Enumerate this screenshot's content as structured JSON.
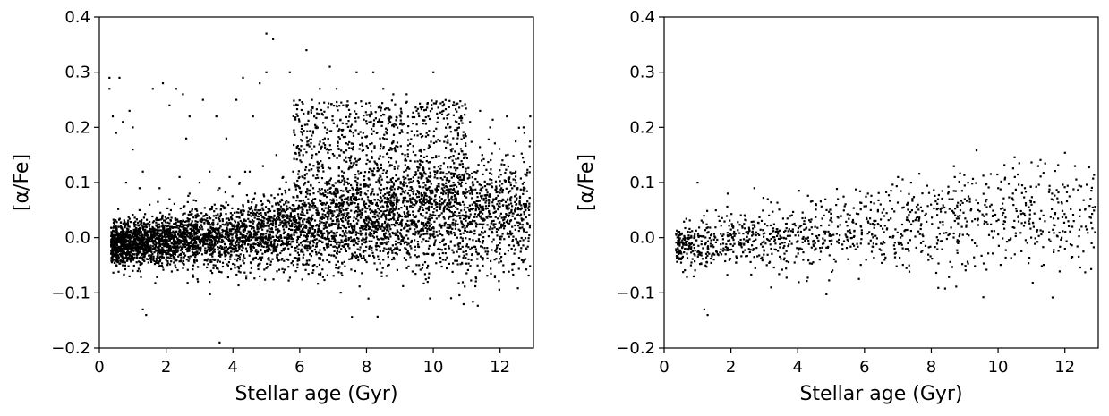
{
  "chart_data": [
    {
      "type": "scatter",
      "xlabel": "Stellar age (Gyr)",
      "ylabel": "[α/Fe]",
      "xlim": [
        0,
        13
      ],
      "ylim": [
        -0.2,
        0.4
      ],
      "xticks": [
        "0",
        "2",
        "4",
        "6",
        "8",
        "10",
        "12"
      ],
      "yticks": [
        "−0.2",
        "−0.1",
        "0.0",
        "0.1",
        "0.2",
        "0.3",
        "0.4"
      ],
      "marker_color": "#000000",
      "grid": false,
      "points": [
        [
          0.3,
          0.27
        ],
        [
          0.3,
          0.29
        ],
        [
          0.6,
          0.29
        ],
        [
          0.4,
          0.22
        ],
        [
          0.7,
          0.21
        ],
        [
          0.9,
          0.23
        ],
        [
          0.5,
          0.19
        ],
        [
          1.0,
          0.2
        ],
        [
          1.0,
          0.16
        ],
        [
          1.3,
          0.12
        ],
        [
          1.2,
          0.09
        ],
        [
          0.8,
          0.1
        ],
        [
          1.6,
          0.27
        ],
        [
          1.9,
          0.28
        ],
        [
          2.1,
          0.24
        ],
        [
          2.3,
          0.27
        ],
        [
          2.5,
          0.26
        ],
        [
          2.7,
          0.22
        ],
        [
          2.6,
          0.18
        ],
        [
          3.1,
          0.25
        ],
        [
          3.5,
          0.22
        ],
        [
          3.8,
          0.18
        ],
        [
          4.1,
          0.25
        ],
        [
          4.3,
          0.29
        ],
        [
          4.6,
          0.22
        ],
        [
          4.8,
          0.28
        ],
        [
          5.0,
          0.3
        ],
        [
          5.0,
          0.37
        ],
        [
          5.2,
          0.36
        ],
        [
          5.7,
          0.3
        ],
        [
          6.2,
          0.34
        ],
        [
          6.6,
          0.27
        ],
        [
          6.9,
          0.31
        ],
        [
          7.1,
          0.27
        ],
        [
          7.3,
          0.24
        ],
        [
          7.7,
          0.3
        ],
        [
          8.2,
          0.3
        ],
        [
          8.5,
          0.27
        ],
        [
          8.8,
          0.26
        ],
        [
          9.2,
          0.26
        ],
        [
          9.5,
          0.23
        ],
        [
          10.0,
          0.3
        ],
        [
          10.3,
          0.23
        ],
        [
          10.7,
          0.21
        ],
        [
          11.1,
          0.21
        ],
        [
          11.4,
          0.23
        ],
        [
          11.7,
          0.2
        ],
        [
          12.2,
          0.22
        ],
        [
          12.7,
          0.2
        ],
        [
          12.9,
          0.22
        ],
        [
          12.6,
          0.04
        ],
        [
          12.8,
          0.01
        ],
        [
          12.3,
          0.03
        ],
        [
          11.8,
          0.07
        ],
        [
          11.5,
          0.05
        ],
        [
          11.1,
          0.08
        ],
        [
          1.3,
          -0.13
        ],
        [
          1.4,
          -0.14
        ],
        [
          3.3,
          -0.08
        ],
        [
          3.6,
          -0.19
        ],
        [
          9.9,
          -0.11
        ],
        [
          0.9,
          -0.07
        ],
        [
          0.7,
          -0.05
        ],
        [
          1.0,
          -0.06
        ],
        [
          11.0,
          -0.03
        ],
        [
          12.0,
          -0.02
        ],
        [
          7.8,
          -0.03
        ],
        [
          8.5,
          -0.04
        ],
        [
          6.5,
          -0.03
        ],
        [
          7.2,
          0.1
        ],
        [
          7.5,
          0.13
        ],
        [
          7.9,
          0.19
        ],
        [
          8.1,
          0.22
        ],
        [
          8.4,
          0.18
        ],
        [
          8.7,
          0.21
        ],
        [
          9.0,
          0.19
        ],
        [
          9.3,
          0.17
        ],
        [
          9.6,
          0.14
        ],
        [
          9.8,
          0.19
        ],
        [
          8.0,
          0.15
        ],
        [
          7.6,
          0.17
        ],
        [
          6.8,
          0.16
        ],
        [
          6.4,
          0.19
        ],
        [
          6.1,
          0.15
        ],
        [
          5.8,
          0.12
        ],
        [
          5.5,
          0.11
        ],
        [
          5.3,
          0.15
        ],
        [
          4.9,
          0.13
        ],
        [
          4.5,
          0.12
        ],
        [
          4.2,
          0.1
        ],
        [
          3.9,
          0.11
        ],
        [
          3.6,
          0.09
        ],
        [
          3.3,
          0.12
        ],
        [
          3.0,
          0.1
        ],
        [
          2.7,
          0.08
        ],
        [
          2.4,
          0.11
        ],
        [
          2.1,
          0.07
        ],
        [
          1.8,
          0.09
        ],
        [
          1.5,
          0.06
        ],
        [
          1.2,
          0.05
        ],
        [
          8.3,
          0.06
        ],
        [
          8.6,
          0.09
        ],
        [
          8.9,
          0.07
        ],
        [
          9.1,
          0.11
        ],
        [
          9.4,
          0.08
        ],
        [
          9.7,
          0.05
        ],
        [
          10.1,
          0.09
        ],
        [
          10.4,
          0.06
        ],
        [
          10.6,
          0.1
        ],
        [
          10.9,
          0.04
        ],
        [
          7.0,
          0.07
        ],
        [
          7.4,
          0.05
        ],
        [
          6.7,
          0.08
        ],
        [
          6.3,
          0.06
        ],
        [
          6.0,
          0.09
        ],
        [
          5.6,
          0.05
        ]
      ]
    },
    {
      "type": "scatter",
      "xlabel": "Stellar age (Gyr)",
      "ylabel": "[α/Fe]",
      "xlim": [
        0,
        13
      ],
      "ylim": [
        -0.2,
        0.4
      ],
      "xticks": [
        "0",
        "2",
        "4",
        "6",
        "8",
        "10",
        "12"
      ],
      "yticks": [
        "−0.2",
        "−0.1",
        "0.0",
        "0.1",
        "0.2",
        "0.3",
        "0.4"
      ],
      "marker_color": "#000000",
      "grid": false,
      "points": [
        [
          1.0,
          0.1
        ],
        [
          1.2,
          -0.13
        ],
        [
          1.3,
          -0.14
        ],
        [
          3.2,
          -0.09
        ],
        [
          0.9,
          -0.07
        ],
        [
          0.8,
          -0.05
        ],
        [
          1.9,
          0.08
        ],
        [
          2.7,
          0.09
        ],
        [
          3.1,
          0.07
        ],
        [
          5.2,
          0.07
        ],
        [
          6.1,
          0.08
        ],
        [
          7.0,
          0.11
        ],
        [
          8.7,
          0.11
        ],
        [
          9.1,
          0.1
        ],
        [
          10.5,
          0.11
        ],
        [
          11.2,
          0.13
        ],
        [
          12.3,
          0.13
        ],
        [
          11.6,
          0.07
        ],
        [
          12.1,
          0.03
        ],
        [
          12.5,
          0.02
        ],
        [
          12.9,
          0.01
        ],
        [
          12.8,
          -0.01
        ],
        [
          11.9,
          0.0
        ],
        [
          12.0,
          -0.02
        ],
        [
          10.5,
          -0.03
        ],
        [
          9.3,
          -0.01
        ],
        [
          8.8,
          -0.01
        ],
        [
          7.3,
          -0.01
        ],
        [
          6.9,
          -0.02
        ],
        [
          6.6,
          -0.04
        ],
        [
          6.4,
          0.05
        ],
        [
          7.6,
          0.06
        ],
        [
          8.2,
          0.07
        ],
        [
          8.5,
          0.08
        ],
        [
          9.0,
          0.07
        ],
        [
          9.4,
          0.05
        ],
        [
          9.8,
          0.06
        ],
        [
          10.2,
          0.05
        ],
        [
          10.8,
          0.09
        ],
        [
          11.0,
          0.06
        ],
        [
          11.4,
          0.03
        ],
        [
          10.0,
          0.09
        ]
      ]
    }
  ]
}
